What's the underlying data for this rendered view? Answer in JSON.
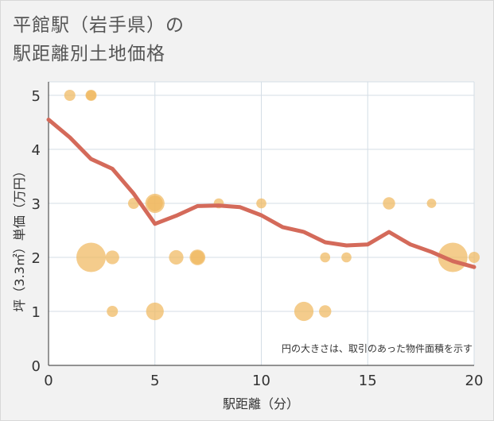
{
  "title_line1": "平館駅（岩手県）の",
  "title_line2": "駅距離別土地価格",
  "note": "円の大きさは、取引のあった物件面積を示す",
  "chart_data": {
    "type": "scatter",
    "title": "平館駅（岩手県）の駅距離別土地価格",
    "xlabel": "駅距離（分）",
    "ylabel": "坪（3.3㎡）単価（万円）",
    "xlim": [
      0,
      20
    ],
    "ylim": [
      0,
      5.25
    ],
    "xticks": [
      0,
      5,
      10,
      15,
      20
    ],
    "yticks": [
      0,
      1,
      2,
      3,
      4,
      5
    ],
    "grid": true,
    "bubble_color": "#f0b860",
    "line_color": "#d46a5a",
    "points": [
      {
        "x": 1,
        "y": 5,
        "size": 1
      },
      {
        "x": 2,
        "y": 5,
        "size": 1
      },
      {
        "x": 2,
        "y": 5,
        "size": 0.8
      },
      {
        "x": 2,
        "y": 2,
        "size": 7
      },
      {
        "x": 3,
        "y": 2,
        "size": 1.5
      },
      {
        "x": 3,
        "y": 1,
        "size": 1
      },
      {
        "x": 4,
        "y": 3,
        "size": 1
      },
      {
        "x": 5,
        "y": 3,
        "size": 3
      },
      {
        "x": 5,
        "y": 3,
        "size": 2
      },
      {
        "x": 5,
        "y": 1,
        "size": 2.5
      },
      {
        "x": 6,
        "y": 2,
        "size": 1.7
      },
      {
        "x": 7,
        "y": 2,
        "size": 2
      },
      {
        "x": 7,
        "y": 2,
        "size": 1.5
      },
      {
        "x": 8,
        "y": 3,
        "size": 0.8
      },
      {
        "x": 10,
        "y": 3,
        "size": 0.8
      },
      {
        "x": 12,
        "y": 1,
        "size": 3
      },
      {
        "x": 13,
        "y": 2,
        "size": 0.8
      },
      {
        "x": 13,
        "y": 1,
        "size": 1.2
      },
      {
        "x": 14,
        "y": 2,
        "size": 0.8
      },
      {
        "x": 16,
        "y": 3,
        "size": 1.2
      },
      {
        "x": 18,
        "y": 3,
        "size": 0.7
      },
      {
        "x": 19,
        "y": 2,
        "size": 7
      },
      {
        "x": 20,
        "y": 2,
        "size": 1
      }
    ],
    "trend": {
      "x": [
        0,
        1,
        2,
        3,
        4,
        5,
        6,
        7,
        8,
        9,
        10,
        11,
        12,
        13,
        14,
        15,
        16,
        17,
        18,
        19,
        20
      ],
      "y": [
        4.55,
        4.22,
        3.82,
        3.64,
        3.18,
        2.62,
        2.77,
        2.95,
        2.96,
        2.93,
        2.78,
        2.56,
        2.47,
        2.28,
        2.22,
        2.24,
        2.47,
        2.24,
        2.1,
        1.93,
        1.82
      ]
    }
  }
}
